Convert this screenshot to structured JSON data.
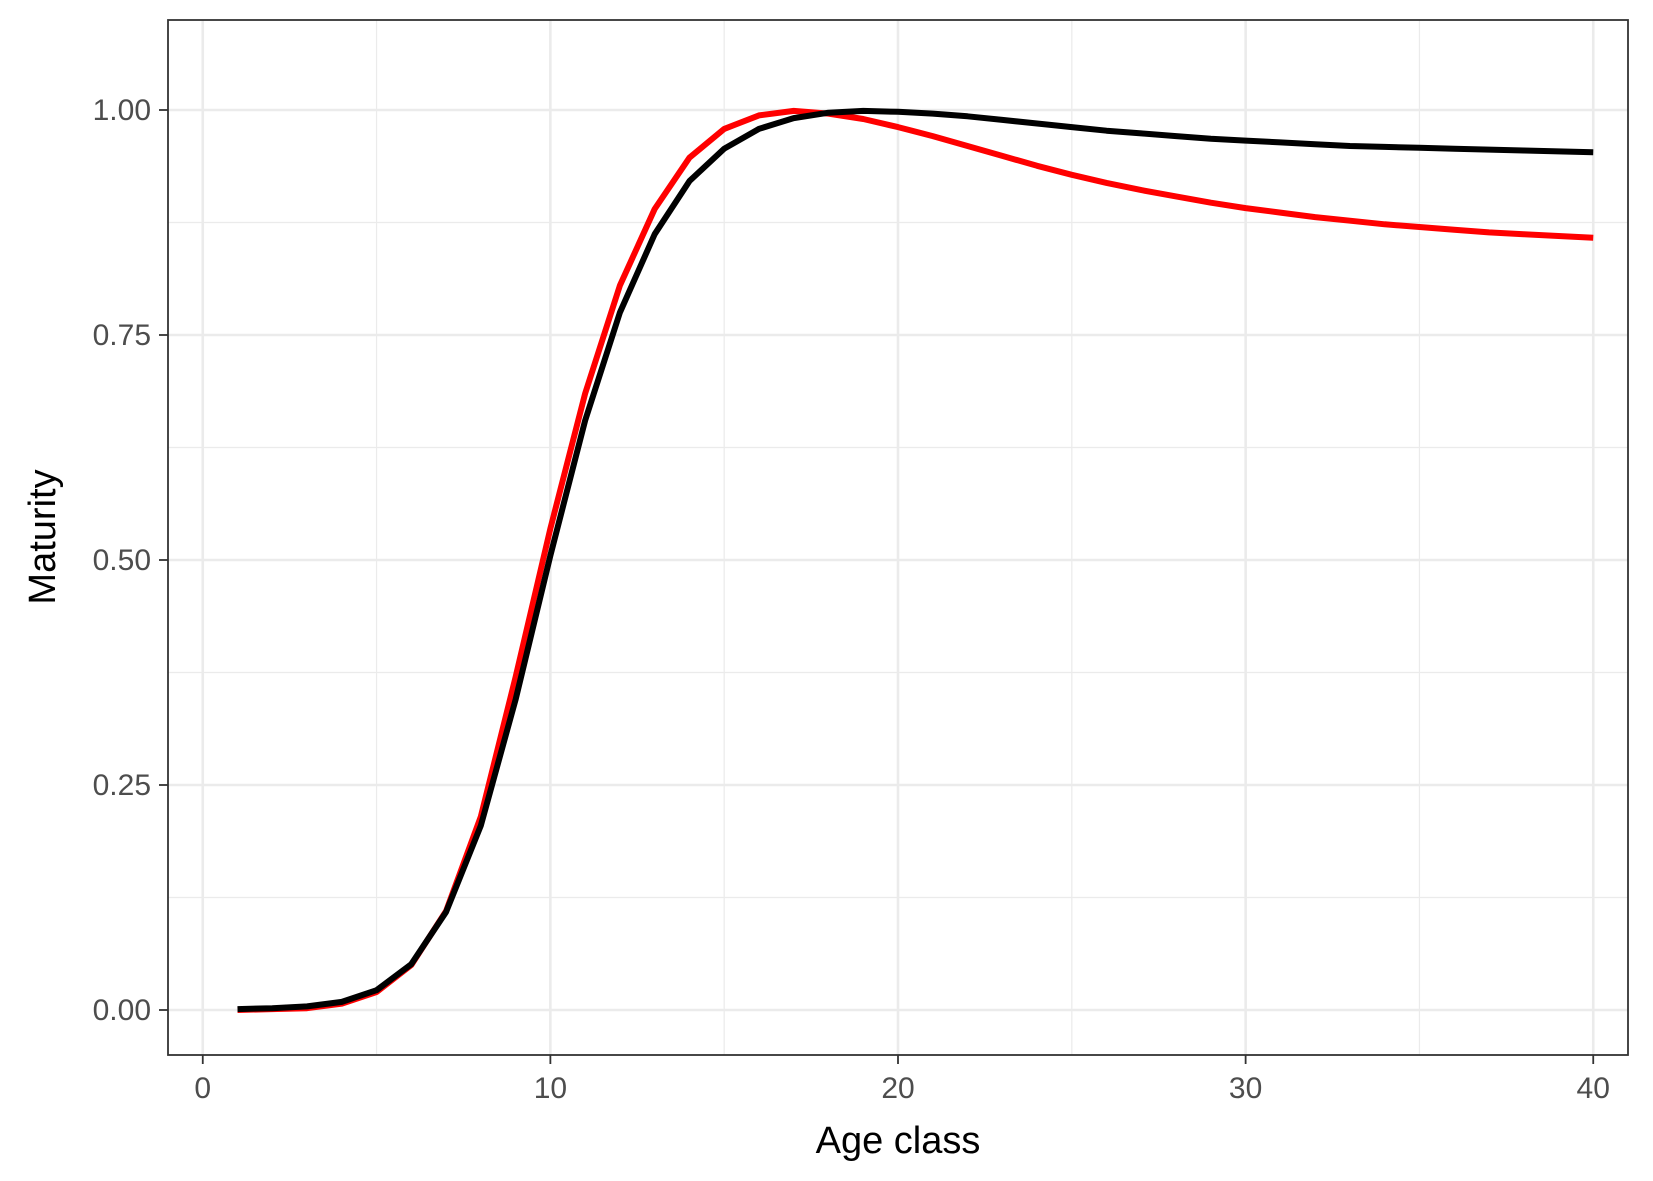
{
  "chart_data": {
    "type": "line",
    "title": "",
    "xlabel": "Age class",
    "ylabel": "Maturity",
    "xlim": [
      -1,
      41
    ],
    "ylim": [
      -0.05,
      1.1
    ],
    "x_ticks": [
      0,
      10,
      20,
      30,
      40
    ],
    "x_tick_labels": [
      "0",
      "10",
      "20",
      "30",
      "40"
    ],
    "y_ticks": [
      0.0,
      0.25,
      0.5,
      0.75,
      1.0
    ],
    "y_tick_labels": [
      "0.00",
      "0.25",
      "0.50",
      "0.75",
      "1.00"
    ],
    "grid": true,
    "legend": "none",
    "x": [
      1,
      2,
      3,
      4,
      5,
      6,
      7,
      8,
      9,
      10,
      11,
      12,
      13,
      14,
      15,
      16,
      17,
      18,
      19,
      20,
      21,
      22,
      23,
      24,
      25,
      26,
      27,
      28,
      29,
      30,
      31,
      32,
      33,
      34,
      35,
      36,
      37,
      38,
      39,
      40
    ],
    "series": [
      {
        "color": "#ff0000",
        "values": [
          0.0,
          0.001,
          0.002,
          0.007,
          0.02,
          0.05,
          0.11,
          0.215,
          0.37,
          0.535,
          0.685,
          0.805,
          0.89,
          0.947,
          0.979,
          0.994,
          0.999,
          0.996,
          0.99,
          0.981,
          0.971,
          0.96,
          0.949,
          0.938,
          0.928,
          0.919,
          0.911,
          0.904,
          0.897,
          0.891,
          0.886,
          0.881,
          0.877,
          0.873,
          0.87,
          0.867,
          0.864,
          0.862,
          0.86,
          0.858
        ]
      },
      {
        "color": "#000000",
        "values": [
          0.001,
          0.002,
          0.004,
          0.009,
          0.022,
          0.051,
          0.109,
          0.205,
          0.345,
          0.505,
          0.655,
          0.775,
          0.862,
          0.921,
          0.957,
          0.979,
          0.991,
          0.997,
          0.999,
          0.998,
          0.996,
          0.993,
          0.989,
          0.985,
          0.981,
          0.977,
          0.974,
          0.971,
          0.968,
          0.966,
          0.964,
          0.962,
          0.96,
          0.959,
          0.958,
          0.957,
          0.956,
          0.955,
          0.954,
          0.953
        ]
      }
    ]
  }
}
